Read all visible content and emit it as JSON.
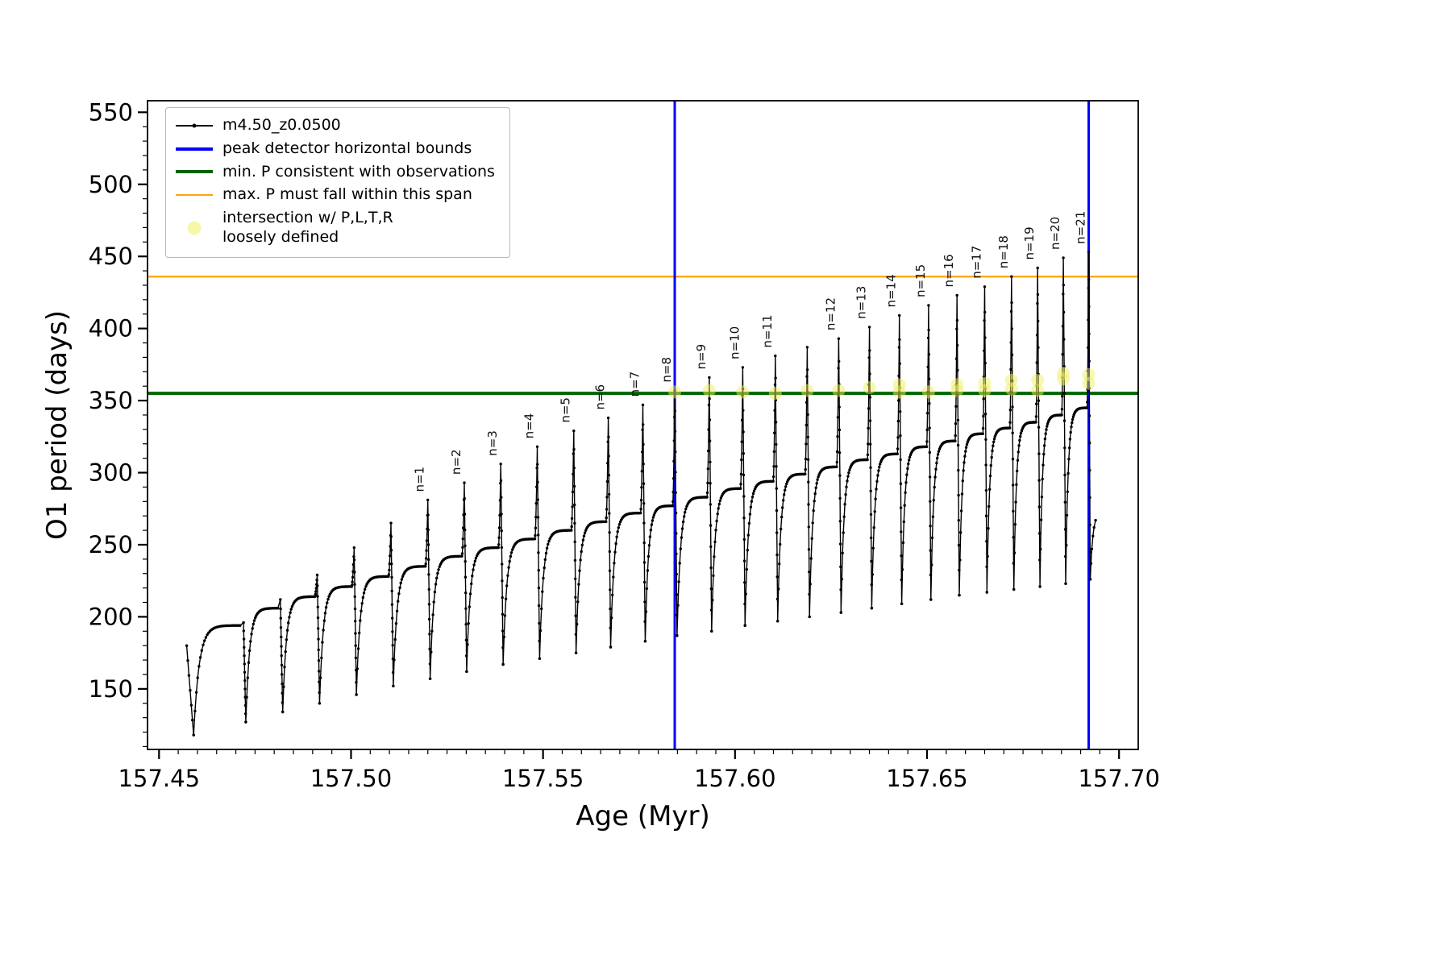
{
  "legend": {
    "items": [
      {
        "label": "m4.50_z0.0500",
        "type": "line-dot",
        "color": "#000000",
        "weight": 2
      },
      {
        "label": "peak detector horizontal bounds",
        "type": "line",
        "color": "#0000ff",
        "weight": 4
      },
      {
        "label": "min. P consistent with observations",
        "type": "line",
        "color": "#006400",
        "weight": 4
      },
      {
        "label": "max. P must fall within this span",
        "type": "line",
        "color": "#ffa500",
        "weight": 2
      },
      {
        "label": "intersection w/ P,L,T,R",
        "label2": "loosely defined",
        "type": "dot",
        "color": "#f0f060"
      }
    ]
  },
  "chart_data": {
    "type": "line",
    "series_name": "m4.50_z0.0500",
    "title": "",
    "xlabel": "Age (Myr)",
    "ylabel": "O1 period (days)",
    "xlim": [
      157.447,
      157.705
    ],
    "ylim": [
      108,
      558
    ],
    "x_ticks": [
      157.45,
      157.5,
      157.55,
      157.6,
      157.65,
      157.7
    ],
    "x_tick_labels": [
      "157.45",
      "157.50",
      "157.55",
      "157.60",
      "157.65",
      "157.70"
    ],
    "x_minor_step": 0.005,
    "y_ticks": [
      150,
      200,
      250,
      300,
      350,
      400,
      450,
      500,
      550
    ],
    "y_tick_labels": [
      "150",
      "200",
      "250",
      "300",
      "350",
      "400",
      "450",
      "500",
      "550"
    ],
    "y_minor_step": 10,
    "grid": false,
    "legend_position": "upper left",
    "vlines": {
      "label": "peak detector horizontal bounds",
      "color": "#0000ff",
      "x": [
        157.5843,
        157.6921
      ]
    },
    "green_line": {
      "label": "min. P consistent with observations",
      "color": "#006400",
      "y": 355
    },
    "orange_line": {
      "label": "max. P must fall within this span",
      "color": "#ffa500",
      "y": 436
    },
    "intersections": {
      "label": "intersection w/ P,L,T,R loosely defined",
      "color": "#f0f060",
      "points": [
        [
          157.5843,
          356
        ],
        [
          157.5933,
          357
        ],
        [
          157.602,
          356
        ],
        [
          157.6105,
          355
        ],
        [
          157.6188,
          357
        ],
        [
          157.627,
          357
        ],
        [
          157.635,
          359
        ],
        [
          157.6428,
          356
        ],
        [
          157.6428,
          361
        ],
        [
          157.6504,
          356
        ],
        [
          157.6578,
          357
        ],
        [
          157.6578,
          361
        ],
        [
          157.665,
          357
        ],
        [
          157.665,
          362
        ],
        [
          157.672,
          358
        ],
        [
          157.672,
          364
        ],
        [
          157.6788,
          357
        ],
        [
          157.6788,
          364
        ],
        [
          157.6855,
          365
        ],
        [
          157.6855,
          369
        ],
        [
          157.6921,
          362
        ],
        [
          157.6921,
          368
        ]
      ]
    },
    "lead_in": {
      "x": 157.4572,
      "v": 180
    },
    "cycles": [
      {
        "t": 157.459,
        "tv": 118,
        "p": 194,
        "s": 157.472,
        "sv": 196,
        "label": null
      },
      {
        "t": 157.4726,
        "tv": 127,
        "p": 206,
        "s": 157.4816,
        "sv": 212,
        "label": null
      },
      {
        "t": 157.4822,
        "tv": 134,
        "p": 214,
        "s": 157.4912,
        "sv": 229,
        "label": null
      },
      {
        "t": 157.4918,
        "tv": 140,
        "p": 221,
        "s": 157.5008,
        "sv": 248,
        "label": null
      },
      {
        "t": 157.5014,
        "tv": 146,
        "p": 228,
        "s": 157.5104,
        "sv": 265,
        "label": null
      },
      {
        "t": 157.511,
        "tv": 152,
        "p": 235,
        "s": 157.52,
        "sv": 281,
        "label": "n=1"
      },
      {
        "t": 157.5206,
        "tv": 157,
        "p": 242,
        "s": 157.5295,
        "sv": 293,
        "label": "n=2"
      },
      {
        "t": 157.5301,
        "tv": 162,
        "p": 248,
        "s": 157.539,
        "sv": 306,
        "label": "n=3"
      },
      {
        "t": 157.5396,
        "tv": 167,
        "p": 254,
        "s": 157.5485,
        "sv": 318,
        "label": "n=4"
      },
      {
        "t": 157.5491,
        "tv": 171,
        "p": 260,
        "s": 157.558,
        "sv": 329,
        "label": "n=5"
      },
      {
        "t": 157.5586,
        "tv": 175,
        "p": 266,
        "s": 157.567,
        "sv": 338,
        "label": "n=6"
      },
      {
        "t": 157.5676,
        "tv": 179,
        "p": 272,
        "s": 157.576,
        "sv": 347,
        "label": "n=7"
      },
      {
        "t": 157.5766,
        "tv": 183,
        "p": 277,
        "s": 157.5843,
        "sv": 357,
        "label": "n=8"
      },
      {
        "t": 157.5849,
        "tv": 187,
        "p": 283,
        "s": 157.5933,
        "sv": 366,
        "label": "n=9"
      },
      {
        "t": 157.5939,
        "tv": 190,
        "p": 289,
        "s": 157.602,
        "sv": 373,
        "label": "n=10"
      },
      {
        "t": 157.6026,
        "tv": 194,
        "p": 294,
        "s": 157.6105,
        "sv": 381,
        "label": "n=11"
      },
      {
        "t": 157.6111,
        "tv": 197,
        "p": 299,
        "s": 157.6188,
        "sv": 387,
        "label": null
      },
      {
        "t": 157.6194,
        "tv": 200,
        "p": 304,
        "s": 157.627,
        "sv": 393,
        "label": "n=12"
      },
      {
        "t": 157.6276,
        "tv": 203,
        "p": 309,
        "s": 157.635,
        "sv": 401,
        "label": "n=13"
      },
      {
        "t": 157.6356,
        "tv": 206,
        "p": 313,
        "s": 157.6428,
        "sv": 409,
        "label": "n=14"
      },
      {
        "t": 157.6434,
        "tv": 209,
        "p": 318,
        "s": 157.6504,
        "sv": 416,
        "label": "n=15"
      },
      {
        "t": 157.651,
        "tv": 212,
        "p": 322,
        "s": 157.6578,
        "sv": 423,
        "label": "n=16"
      },
      {
        "t": 157.6584,
        "tv": 215,
        "p": 327,
        "s": 157.665,
        "sv": 429,
        "label": "n=17"
      },
      {
        "t": 157.6656,
        "tv": 217,
        "p": 331,
        "s": 157.672,
        "sv": 436,
        "label": "n=18"
      },
      {
        "t": 157.6726,
        "tv": 219,
        "p": 335,
        "s": 157.6788,
        "sv": 442,
        "label": "n=19"
      },
      {
        "t": 157.6794,
        "tv": 221,
        "p": 340,
        "s": 157.6855,
        "sv": 449,
        "label": "n=20"
      },
      {
        "t": 157.6861,
        "tv": 223,
        "p": 345,
        "s": 157.6921,
        "sv": 453,
        "label": "n=21"
      }
    ],
    "tail": {
      "points": [
        [
          157.6925,
          226
        ],
        [
          157.6927,
          237
        ],
        [
          157.6929,
          247
        ],
        [
          157.6932,
          256
        ],
        [
          157.6935,
          262
        ],
        [
          157.6939,
          267
        ]
      ]
    }
  }
}
